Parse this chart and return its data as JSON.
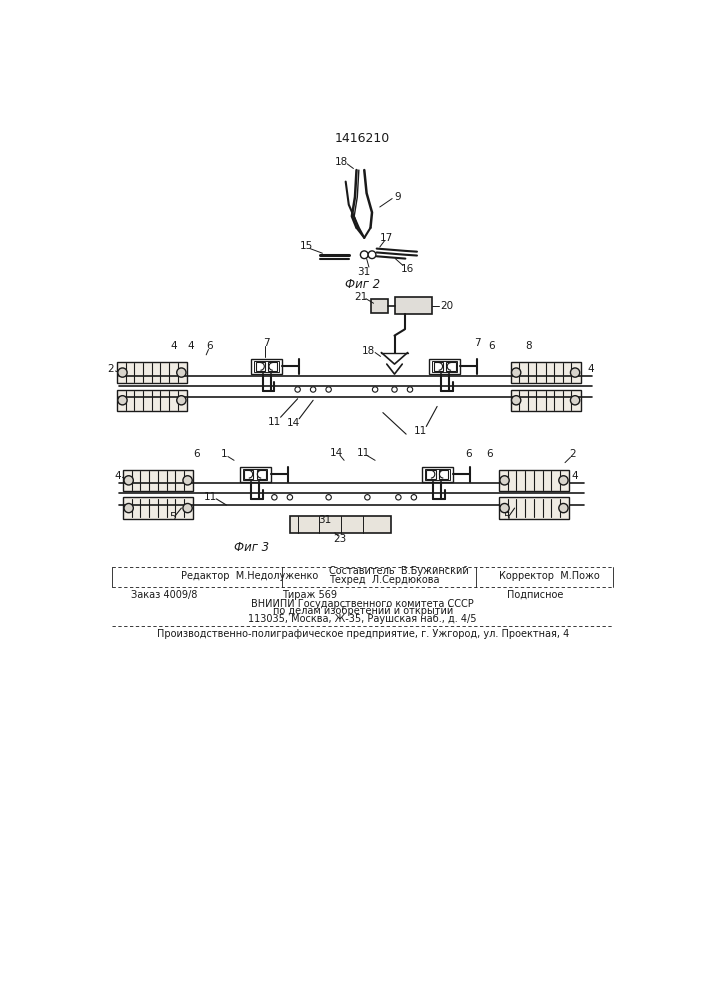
{
  "patent_number": "1416210",
  "fig2_label": "Фиг 2",
  "fig3_label": "Фиг 3",
  "bg_color": "#ffffff",
  "line_color": "#1a1a1a",
  "footer": {
    "editor": "Редактор  М.Недолуженко",
    "compiler": "Составитель  В.Бужинский",
    "tech": "Техред  Л.Сердюкова",
    "corrector": "Корректор  М.Пожо",
    "order": "Заказ 4009/8",
    "tirazh": "Тираж 569",
    "podpisnoe": "Подписное",
    "vniipи": "ВНИИПИ Государственного комитета СССР",
    "po_delam": "по делам изобретений и открытий",
    "address": "113035, Москва, Ж-35, Раушская наб., д. 4/5",
    "factory": "Производственно-полиграфическое предприятие, г. Ужгород, ул. Проектная, 4"
  }
}
